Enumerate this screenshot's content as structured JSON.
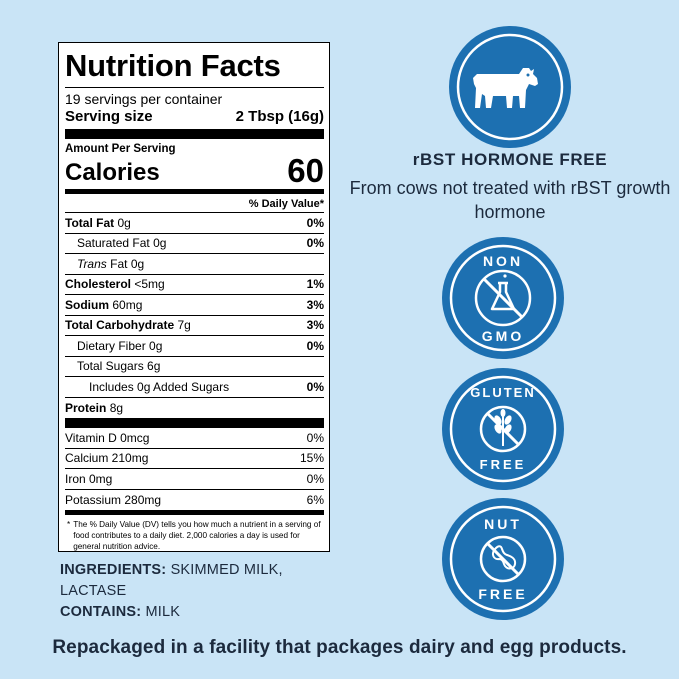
{
  "label": {
    "title": "Nutrition Facts",
    "servings": "19 servings per container",
    "serving_size_label": "Serving size",
    "serving_size_value": "2 Tbsp (16g)",
    "amount_per_serving": "Amount Per Serving",
    "calories_label": "Calories",
    "calories_value": "60",
    "dv_header": "% Daily Value*",
    "rows": {
      "total_fat": {
        "name": "Total Fat",
        "amount": "0g",
        "pct": "0%"
      },
      "sat_fat": {
        "name": "Saturated Fat",
        "amount": "0g",
        "pct": "0%"
      },
      "trans_fat": {
        "name": "Trans",
        "amount": "Fat 0g"
      },
      "cholesterol": {
        "name": "Cholesterol",
        "amount": "<5mg",
        "pct": "1%"
      },
      "sodium": {
        "name": "Sodium",
        "amount": "60mg",
        "pct": "3%"
      },
      "carb": {
        "name": "Total Carbohydrate",
        "amount": "7g",
        "pct": "3%"
      },
      "fiber": {
        "name": "Dietary Fiber",
        "amount": "0g",
        "pct": "0%"
      },
      "sugars": {
        "name": "Total Sugars",
        "amount": "6g"
      },
      "added_sugars": {
        "name": "Includes 0g Added Sugars",
        "pct": "0%"
      },
      "protein": {
        "name": "Protein",
        "amount": "8g"
      }
    },
    "vitamins": {
      "vit_d": {
        "name": "Vitamin D 0mcg",
        "pct": "0%"
      },
      "calcium": {
        "name": "Calcium 210mg",
        "pct": "15%"
      },
      "iron": {
        "name": "Iron 0mg",
        "pct": "0%"
      },
      "potassium": {
        "name": "Potassium 280mg",
        "pct": "6%"
      }
    },
    "footnote_mark": "*",
    "footnote": "The % Daily Value (DV) tells you how much a nutrient in a serving of food contributes to a daily diet. 2,000 calories a day is used for general nutrition advice."
  },
  "ingredients": {
    "label": "INGREDIENTS:",
    "text": "SKIMMED MILK, LACTASE",
    "contains_label": "CONTAINS:",
    "contains_text": "MILK"
  },
  "bottom_note": "Repackaged in a facility that packages dairy and egg products.",
  "badges": {
    "rbst_title": "rBST HORMONE FREE",
    "rbst_text": "From cows not treated with rBST growth hormone",
    "non_gmo_top": "NON",
    "non_gmo_bottom": "GMO",
    "gluten_top": "GLUTEN",
    "gluten_bottom": "FREE",
    "nut_top": "NUT",
    "nut_bottom": "FREE",
    "icons": [
      "cow-icon",
      "no-gmo-flask-icon",
      "no-wheat-icon",
      "no-peanut-icon"
    ]
  },
  "colors": {
    "background": "#c9e4f6",
    "badge": "#1d70b1",
    "text_dark": "#1c2a3d"
  }
}
